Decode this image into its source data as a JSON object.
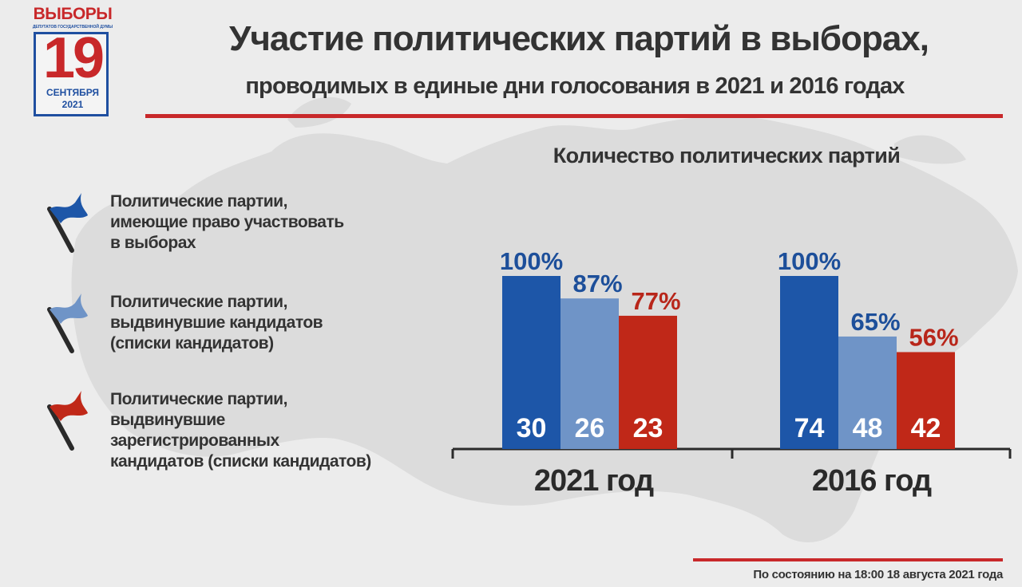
{
  "logo": {
    "word": "ВЫБОРЫ",
    "subtitle": "ДЕПУТАТОВ ГОСУДАРСТВЕННОЙ ДУМЫ",
    "day": "19",
    "month": "СЕНТЯБРЯ",
    "year": "2021"
  },
  "header": {
    "title": "Участие политических партий в выборах,",
    "subtitle": "проводимых в единые дни голосования в 2021 и 2016 годах"
  },
  "colors": {
    "dark_blue": "#1d56a8",
    "light_blue": "#6f94c7",
    "red": "#c02818",
    "accent_red": "#c8282a"
  },
  "legend": [
    {
      "label": "Политические партии, имеющие право участвовать в выборах",
      "lines": [
        "Политические партии,",
        "имеющие право участвовать",
        "в выборах"
      ],
      "icon": "flag-icon",
      "color": "#1d56a8"
    },
    {
      "label": "Политические партии, выдвинувшие кандидатов (списки кандидатов)",
      "lines": [
        "Политические партии,",
        "выдвинувшие кандидатов",
        "(списки кандидатов)"
      ],
      "icon": "flag-icon",
      "color": "#6f94c7"
    },
    {
      "label": "Политические партии, выдвинувшие зарегистрированных кандидатов (списки кандидатов)",
      "lines": [
        "Политические партии,",
        "выдвинувшие",
        "зарегистрированных",
        "кандидатов (списки кандидатов)"
      ],
      "icon": "flag-icon",
      "color": "#c02818"
    }
  ],
  "chart_data": {
    "type": "bar",
    "title": "Количество политических партий",
    "categories": [
      "2021 год",
      "2016 год"
    ],
    "series": [
      {
        "values": [
          30,
          74
        ],
        "percent_labels": [
          "100%",
          "100%"
        ],
        "percent_values": [
          100,
          100
        ],
        "color": "#1d56a8"
      },
      {
        "values": [
          26,
          48
        ],
        "percent_labels": [
          "87%",
          "65%"
        ],
        "percent_values": [
          87,
          65
        ],
        "color": "#6f94c7"
      },
      {
        "values": [
          23,
          42
        ],
        "percent_labels": [
          "77%",
          "56%"
        ],
        "percent_values": [
          77,
          56
        ],
        "color": "#c02818"
      }
    ],
    "value_axis": "percent",
    "ylim": [
      0,
      100
    ],
    "grid": false,
    "legend_position": "left"
  },
  "footer": {
    "note": "По состоянию на 18:00 18 августа 2021 года"
  }
}
